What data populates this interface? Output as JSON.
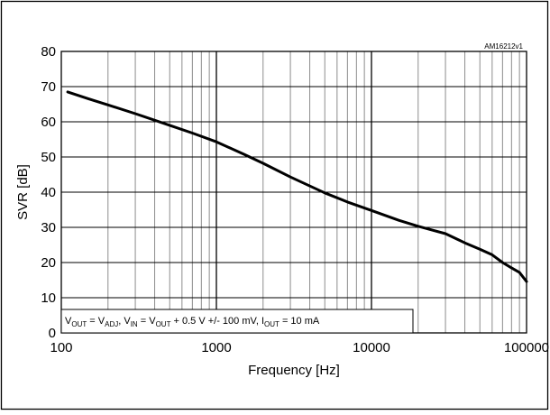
{
  "chart_data": {
    "type": "line",
    "title": "",
    "figure_code": "AM16212v1",
    "xlabel": "Frequency [Hz]",
    "ylabel": "SVR [dB]",
    "xscale": "log",
    "xlim": [
      100,
      100000
    ],
    "ylim": [
      0,
      80
    ],
    "grid": true,
    "x_tick_labels": [
      "100",
      "1000",
      "10000",
      "100000"
    ],
    "y_tick_labels": [
      "0",
      "10",
      "20",
      "30",
      "40",
      "50",
      "60",
      "70",
      "80"
    ],
    "condition": {
      "parts": [
        {
          "t": "V",
          "s": "normal"
        },
        {
          "t": "OUT",
          "s": "sub"
        },
        {
          "t": " = V",
          "s": "normal"
        },
        {
          "t": "ADJ",
          "s": "sub"
        },
        {
          "t": ", V",
          "s": "normal"
        },
        {
          "t": "IN",
          "s": "sub"
        },
        {
          "t": " = V",
          "s": "normal"
        },
        {
          "t": "OUT",
          "s": "sub"
        },
        {
          "t": " + 0.5 V +/- 100 mV, I",
          "s": "normal"
        },
        {
          "t": "OUT",
          "s": "sub"
        },
        {
          "t": " = 10 mA",
          "s": "normal"
        }
      ]
    },
    "series": [
      {
        "color": "#000000",
        "x": [
          110,
          150,
          200,
          300,
          500,
          700,
          1000,
          1500,
          2000,
          3000,
          5000,
          7000,
          10000,
          15000,
          20000,
          30000,
          40000,
          50000,
          60000,
          70000,
          80000,
          90000,
          100000
        ],
        "y": [
          68.5,
          66.5,
          64.8,
          62.3,
          59.0,
          56.8,
          54.3,
          50.8,
          48.2,
          44.3,
          39.8,
          37.2,
          34.8,
          32.0,
          30.3,
          28.2,
          25.6,
          23.8,
          22.2,
          20.0,
          18.5,
          17.2,
          14.6
        ]
      }
    ]
  }
}
